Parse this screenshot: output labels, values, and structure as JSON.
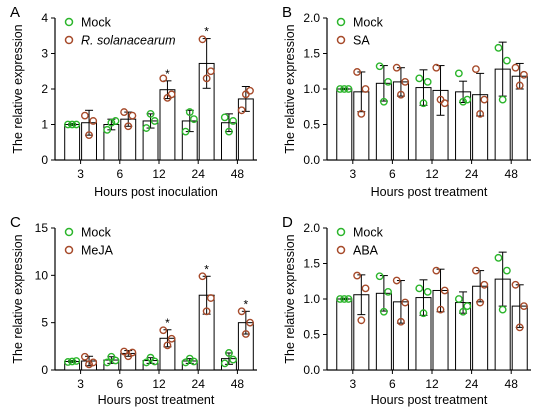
{
  "colors": {
    "mock": "#2bb52b",
    "treatment": "#a64a2a",
    "axis": "#000000",
    "bar": "#ffffff"
  },
  "chart_data": [
    {
      "panel": "A",
      "type": "bar",
      "ylabel": "The relative expression",
      "xlabel": "Hours post inoculation",
      "categories": [
        "3",
        "6",
        "12",
        "24",
        "48"
      ],
      "ylim": [
        0,
        4
      ],
      "yticks": [
        "0",
        "1",
        "2",
        "3",
        "4"
      ],
      "series": [
        {
          "name": "Mock",
          "values": [
            1.0,
            1.0,
            1.1,
            1.1,
            1.05
          ],
          "err": [
            0.03,
            0.15,
            0.2,
            0.3,
            0.25
          ],
          "points": [
            [
              1.0,
              1.0,
              1.0
            ],
            [
              0.85,
              1.05,
              1.1
            ],
            [
              0.9,
              1.3,
              1.1
            ],
            [
              0.8,
              1.35,
              1.15
            ],
            [
              1.2,
              0.8,
              1.1
            ]
          ]
        },
        {
          "name": "R. solanacearum",
          "italic": true,
          "values": [
            1.05,
            1.15,
            1.98,
            2.72,
            1.72
          ],
          "err": [
            0.35,
            0.2,
            0.25,
            0.7,
            0.35
          ],
          "points": [
            [
              1.25,
              0.7,
              1.1
            ],
            [
              1.35,
              0.95,
              1.25
            ],
            [
              2.3,
              1.75,
              1.85
            ],
            [
              3.4,
              2.3,
              2.5
            ],
            [
              1.4,
              1.85,
              1.95
            ]
          ]
        }
      ],
      "significant": [
        "12",
        "24"
      ],
      "legend_position": "top-left"
    },
    {
      "panel": "B",
      "type": "bar",
      "ylabel": "The relative expression",
      "xlabel": "Hours post treatment",
      "categories": [
        "3",
        "6",
        "12",
        "24",
        "48"
      ],
      "ylim": [
        0,
        2.0
      ],
      "yticks": [
        "0.0",
        "0.5",
        "1.0",
        "1.5",
        "2.0"
      ],
      "series": [
        {
          "name": "Mock",
          "values": [
            1.0,
            1.08,
            1.02,
            0.96,
            1.28
          ],
          "err": [
            0.01,
            0.25,
            0.25,
            0.15,
            0.38
          ],
          "points": [
            [
              1.0,
              1.0,
              1.0
            ],
            [
              1.32,
              0.82,
              1.1
            ],
            [
              1.15,
              0.8,
              1.1
            ],
            [
              1.22,
              0.82,
              0.85
            ],
            [
              1.58,
              0.85,
              1.4
            ]
          ]
        },
        {
          "name": "SA",
          "values": [
            0.96,
            1.1,
            0.98,
            0.92,
            1.18
          ],
          "err": [
            0.28,
            0.2,
            0.35,
            0.3,
            0.18
          ],
          "points": [
            [
              1.24,
              0.65,
              1.0
            ],
            [
              1.3,
              0.92,
              1.1
            ],
            [
              1.3,
              0.85,
              0.8
            ],
            [
              1.28,
              0.65,
              0.85
            ],
            [
              1.3,
              1.05,
              1.2
            ]
          ]
        }
      ],
      "significant": [],
      "legend_position": "top-left"
    },
    {
      "panel": "C",
      "type": "bar",
      "ylabel": "The relative expression",
      "xlabel": "Hours post treatment",
      "categories": [
        "3",
        "6",
        "12",
        "24",
        "48"
      ],
      "ylim": [
        0,
        15
      ],
      "yticks": [
        "0",
        "5",
        "10",
        "15"
      ],
      "series": [
        {
          "name": "Mock",
          "values": [
            0.9,
            1.05,
            1.0,
            0.95,
            1.2
          ],
          "err": [
            0.1,
            0.35,
            0.3,
            0.25,
            0.6
          ],
          "points": [
            [
              0.85,
              0.9,
              0.95
            ],
            [
              0.8,
              1.4,
              1.0
            ],
            [
              0.8,
              1.3,
              0.9
            ],
            [
              0.8,
              1.2,
              0.9
            ],
            [
              0.7,
              1.8,
              1.1
            ]
          ]
        },
        {
          "name": "MeJA",
          "values": [
            0.95,
            1.75,
            3.35,
            7.9,
            5.0
          ],
          "err": [
            0.5,
            0.3,
            0.9,
            2.0,
            1.2
          ],
          "points": [
            [
              1.4,
              0.6,
              0.8
            ],
            [
              1.95,
              1.45,
              1.85
            ],
            [
              4.2,
              2.6,
              3.3
            ],
            [
              9.9,
              6.2,
              7.6
            ],
            [
              6.2,
              3.8,
              5.0
            ]
          ]
        }
      ],
      "significant": [
        "12",
        "24",
        "48"
      ],
      "legend_position": "top-left"
    },
    {
      "panel": "D",
      "type": "bar",
      "ylabel": "The relative expression",
      "xlabel": "Hours post treatment",
      "categories": [
        "3",
        "6",
        "12",
        "24",
        "48"
      ],
      "ylim": [
        0,
        2.0
      ],
      "yticks": [
        "0.0",
        "0.5",
        "1.0",
        "1.5",
        "2.0"
      ],
      "series": [
        {
          "name": "Mock",
          "values": [
            1.0,
            1.08,
            1.02,
            0.95,
            1.28
          ],
          "err": [
            0.01,
            0.25,
            0.25,
            0.15,
            0.38
          ],
          "points": [
            [
              1.0,
              1.0,
              1.0
            ],
            [
              1.32,
              0.82,
              1.1
            ],
            [
              1.15,
              0.8,
              1.1
            ],
            [
              1.0,
              0.82,
              0.9
            ],
            [
              1.58,
              0.85,
              1.4
            ]
          ]
        },
        {
          "name": "ABA",
          "values": [
            1.06,
            0.96,
            1.12,
            1.18,
            0.9
          ],
          "err": [
            0.28,
            0.3,
            0.3,
            0.22,
            0.3
          ],
          "points": [
            [
              1.33,
              0.7,
              1.15
            ],
            [
              1.26,
              0.68,
              0.95
            ],
            [
              1.4,
              0.85,
              1.12
            ],
            [
              1.4,
              0.95,
              1.2
            ],
            [
              1.2,
              0.6,
              0.9
            ]
          ]
        }
      ],
      "significant": [],
      "legend_position": "top-left"
    }
  ]
}
